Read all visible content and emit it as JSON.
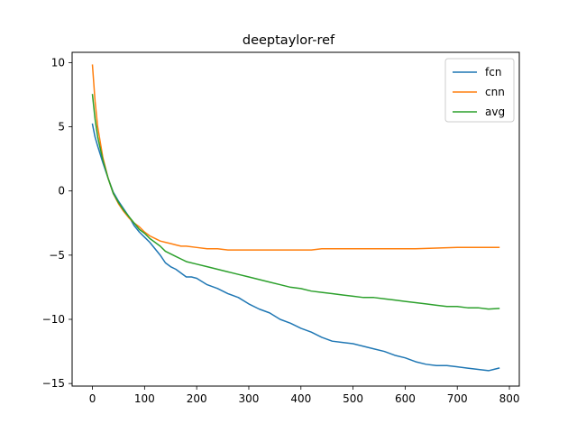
{
  "chart_data": {
    "type": "line",
    "title": "deeptaylor-ref",
    "xlabel": "",
    "ylabel": "",
    "xlim": [
      -39,
      819
    ],
    "ylim": [
      -15.2,
      10.8
    ],
    "xticks": [
      0,
      100,
      200,
      300,
      400,
      500,
      600,
      700,
      800
    ],
    "yticks": [
      -15,
      -10,
      -5,
      0,
      5,
      10
    ],
    "grid": false,
    "legend_position": "top-right",
    "series": [
      {
        "name": "fcn",
        "color": "#1f77b4",
        "points": [
          [
            0,
            5.2
          ],
          [
            5,
            4.2
          ],
          [
            10,
            3.5
          ],
          [
            20,
            2.2
          ],
          [
            30,
            1.0
          ],
          [
            40,
            -0.1
          ],
          [
            50,
            -0.8
          ],
          [
            60,
            -1.4
          ],
          [
            70,
            -2.0
          ],
          [
            80,
            -2.7
          ],
          [
            90,
            -3.2
          ],
          [
            100,
            -3.6
          ],
          [
            110,
            -4.0
          ],
          [
            120,
            -4.5
          ],
          [
            130,
            -5.0
          ],
          [
            140,
            -5.6
          ],
          [
            150,
            -5.9
          ],
          [
            160,
            -6.1
          ],
          [
            170,
            -6.4
          ],
          [
            180,
            -6.7
          ],
          [
            190,
            -6.7
          ],
          [
            200,
            -6.8
          ],
          [
            220,
            -7.3
          ],
          [
            240,
            -7.6
          ],
          [
            260,
            -8.0
          ],
          [
            280,
            -8.3
          ],
          [
            300,
            -8.8
          ],
          [
            320,
            -9.2
          ],
          [
            340,
            -9.5
          ],
          [
            360,
            -10.0
          ],
          [
            380,
            -10.3
          ],
          [
            400,
            -10.7
          ],
          [
            420,
            -11.0
          ],
          [
            440,
            -11.4
          ],
          [
            460,
            -11.7
          ],
          [
            480,
            -11.8
          ],
          [
            500,
            -11.9
          ],
          [
            520,
            -12.1
          ],
          [
            540,
            -12.3
          ],
          [
            560,
            -12.5
          ],
          [
            580,
            -12.8
          ],
          [
            600,
            -13.0
          ],
          [
            620,
            -13.3
          ],
          [
            640,
            -13.5
          ],
          [
            660,
            -13.6
          ],
          [
            680,
            -13.6
          ],
          [
            700,
            -13.7
          ],
          [
            720,
            -13.8
          ],
          [
            740,
            -13.9
          ],
          [
            760,
            -14.0
          ],
          [
            770,
            -13.9
          ],
          [
            780,
            -13.8
          ]
        ]
      },
      {
        "name": "cnn",
        "color": "#ff7f0e",
        "points": [
          [
            0,
            9.8
          ],
          [
            5,
            7.0
          ],
          [
            10,
            5.0
          ],
          [
            20,
            2.6
          ],
          [
            30,
            1.0
          ],
          [
            40,
            -0.2
          ],
          [
            50,
            -1.0
          ],
          [
            60,
            -1.6
          ],
          [
            70,
            -2.1
          ],
          [
            80,
            -2.5
          ],
          [
            90,
            -2.8
          ],
          [
            100,
            -3.2
          ],
          [
            110,
            -3.5
          ],
          [
            120,
            -3.7
          ],
          [
            130,
            -3.9
          ],
          [
            140,
            -4.0
          ],
          [
            150,
            -4.1
          ],
          [
            160,
            -4.2
          ],
          [
            170,
            -4.3
          ],
          [
            180,
            -4.3
          ],
          [
            200,
            -4.4
          ],
          [
            220,
            -4.5
          ],
          [
            240,
            -4.5
          ],
          [
            260,
            -4.6
          ],
          [
            280,
            -4.6
          ],
          [
            300,
            -4.6
          ],
          [
            320,
            -4.6
          ],
          [
            340,
            -4.6
          ],
          [
            360,
            -4.6
          ],
          [
            380,
            -4.6
          ],
          [
            400,
            -4.6
          ],
          [
            420,
            -4.6
          ],
          [
            440,
            -4.5
          ],
          [
            460,
            -4.5
          ],
          [
            480,
            -4.5
          ],
          [
            500,
            -4.5
          ],
          [
            540,
            -4.5
          ],
          [
            580,
            -4.5
          ],
          [
            620,
            -4.5
          ],
          [
            660,
            -4.45
          ],
          [
            700,
            -4.4
          ],
          [
            740,
            -4.4
          ],
          [
            780,
            -4.4
          ]
        ]
      },
      {
        "name": "avg",
        "color": "#2ca02c",
        "points": [
          [
            0,
            7.5
          ],
          [
            5,
            5.6
          ],
          [
            10,
            4.2
          ],
          [
            20,
            2.4
          ],
          [
            30,
            1.0
          ],
          [
            40,
            -0.2
          ],
          [
            50,
            -0.9
          ],
          [
            60,
            -1.5
          ],
          [
            70,
            -2.0
          ],
          [
            80,
            -2.5
          ],
          [
            90,
            -3.0
          ],
          [
            100,
            -3.3
          ],
          [
            110,
            -3.7
          ],
          [
            120,
            -4.0
          ],
          [
            130,
            -4.3
          ],
          [
            140,
            -4.7
          ],
          [
            150,
            -4.9
          ],
          [
            160,
            -5.1
          ],
          [
            170,
            -5.3
          ],
          [
            180,
            -5.5
          ],
          [
            200,
            -5.7
          ],
          [
            220,
            -5.9
          ],
          [
            240,
            -6.1
          ],
          [
            260,
            -6.3
          ],
          [
            280,
            -6.5
          ],
          [
            300,
            -6.7
          ],
          [
            320,
            -6.9
          ],
          [
            340,
            -7.1
          ],
          [
            360,
            -7.3
          ],
          [
            380,
            -7.5
          ],
          [
            400,
            -7.6
          ],
          [
            420,
            -7.8
          ],
          [
            440,
            -7.9
          ],
          [
            460,
            -8.0
          ],
          [
            480,
            -8.1
          ],
          [
            500,
            -8.2
          ],
          [
            520,
            -8.3
          ],
          [
            540,
            -8.3
          ],
          [
            560,
            -8.4
          ],
          [
            580,
            -8.5
          ],
          [
            600,
            -8.6
          ],
          [
            620,
            -8.7
          ],
          [
            640,
            -8.8
          ],
          [
            660,
            -8.9
          ],
          [
            680,
            -9.0
          ],
          [
            700,
            -9.0
          ],
          [
            720,
            -9.1
          ],
          [
            740,
            -9.1
          ],
          [
            760,
            -9.2
          ],
          [
            780,
            -9.15
          ]
        ]
      }
    ]
  }
}
